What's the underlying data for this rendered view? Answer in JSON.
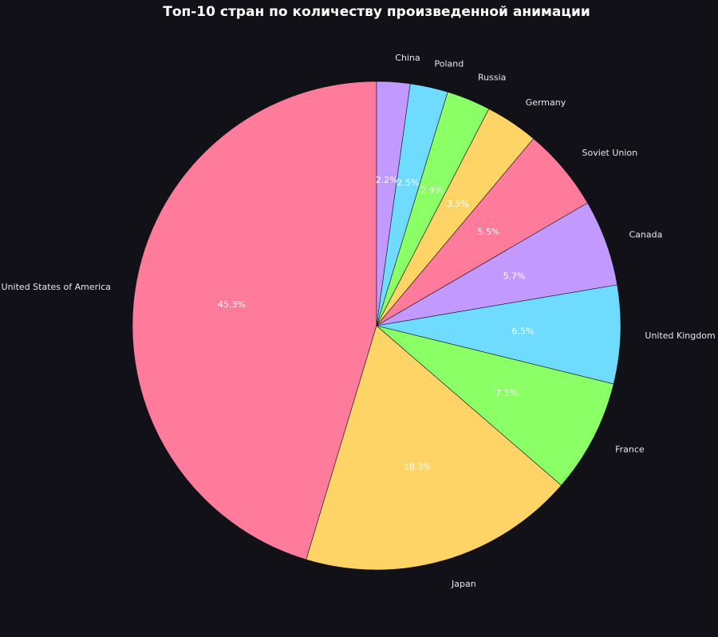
{
  "chart_data": {
    "type": "pie",
    "title": "Топ-10 стран по количеству произведенной анимации",
    "start_angle": 90,
    "direction": "counterclockwise",
    "slices": [
      {
        "label": "United States of America",
        "value": 45.3,
        "pct_label": "45.3%",
        "color": "#ff7b9c"
      },
      {
        "label": "Japan",
        "value": 18.3,
        "pct_label": "18.3%",
        "color": "#ffd466"
      },
      {
        "label": "France",
        "value": 7.5,
        "pct_label": "7.5%",
        "color": "#8bff66"
      },
      {
        "label": "United Kingdom",
        "value": 6.5,
        "pct_label": "6.5%",
        "color": "#6fdcff"
      },
      {
        "label": "Canada",
        "value": 5.7,
        "pct_label": "5.7%",
        "color": "#c299ff"
      },
      {
        "label": "Soviet Union",
        "value": 5.5,
        "pct_label": "5.5%",
        "color": "#ff7b9c"
      },
      {
        "label": "Germany",
        "value": 3.5,
        "pct_label": "3.5%",
        "color": "#ffd466"
      },
      {
        "label": "Russia",
        "value": 2.9,
        "pct_label": "2.9%",
        "color": "#8bff66"
      },
      {
        "label": "Poland",
        "value": 2.5,
        "pct_label": "2.5%",
        "color": "#6fdcff"
      },
      {
        "label": "China",
        "value": 2.2,
        "pct_label": "2.2%",
        "color": "#c299ff"
      }
    ]
  },
  "colors": {
    "background": "#131118",
    "text": "#ffffff"
  }
}
